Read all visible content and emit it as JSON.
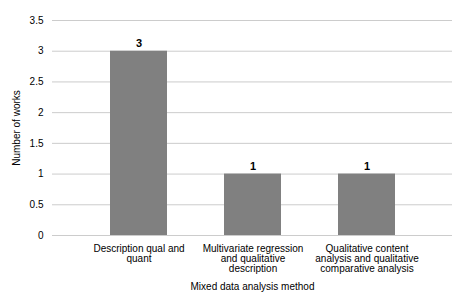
{
  "chart_data": {
    "type": "bar",
    "categories": [
      "Description qual and\nquant",
      "Multivariate regression\nand qualitative\ndescription",
      "Qualitative content\nanalysis and qualitative\ncomparative analysis"
    ],
    "values": [
      3,
      1,
      1
    ],
    "color": "#808080",
    "xlabel": "Mixed data analysis method",
    "ylabel": "Number of works",
    "ylim": [
      0,
      3.5
    ],
    "yticks": [
      0,
      0.5,
      1,
      1.5,
      2,
      2.5,
      3,
      3.5
    ],
    "grid": true,
    "data_labels": true
  }
}
